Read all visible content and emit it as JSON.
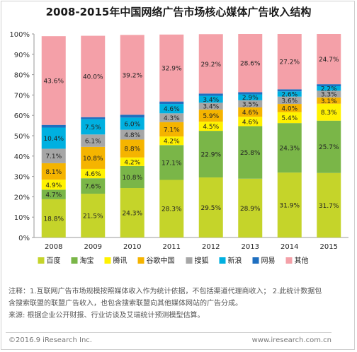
{
  "chart_data": {
    "type": "bar",
    "stacked": true,
    "percent": true,
    "title": "2008-2015年中国网络广告市场核心媒体广告收入结构",
    "categories": [
      "2008",
      "2009",
      "2010",
      "2011",
      "2012",
      "2013",
      "2014",
      "2015"
    ],
    "yticks": [
      "0%",
      "10%",
      "20%",
      "30%",
      "40%",
      "50%",
      "60%",
      "70%",
      "80%",
      "90%",
      "100%"
    ],
    "ylim": [
      0,
      100
    ],
    "grid": false,
    "legend_position": "bottom",
    "series": [
      {
        "name": "百度",
        "color": "#c5d42a",
        "values": [
          18.8,
          21.5,
          24.3,
          28.3,
          29.5,
          28.9,
          31.9,
          31.7
        ]
      },
      {
        "name": "淘宝",
        "color": "#7ab648",
        "values": [
          4.7,
          7.6,
          10.8,
          17.1,
          22.9,
          25.8,
          24.3,
          25.7
        ]
      },
      {
        "name": "腾讯",
        "color": "#fff200",
        "values": [
          4.9,
          4.6,
          4.2,
          4.2,
          4.5,
          4.6,
          5.4,
          8.3
        ]
      },
      {
        "name": "谷歌中国",
        "color": "#f5b400",
        "values": [
          8.1,
          10.8,
          8.8,
          7.1,
          5.9,
          4.6,
          4.0,
          3.1
        ]
      },
      {
        "name": "搜狐",
        "color": "#a6a6a6",
        "values": [
          7.1,
          6.1,
          4.8,
          4.3,
          3.4,
          3.5,
          3.6,
          3.3
        ]
      },
      {
        "name": "新浪",
        "color": "#00b0e0",
        "values": [
          10.4,
          7.5,
          6.0,
          4.6,
          3.4,
          2.9,
          2.6,
          2.2
        ]
      },
      {
        "name": "网易",
        "color": "#1f6fc0",
        "values": [
          1.3,
          1.0,
          1.4,
          1.2,
          1.1,
          1.1,
          1.0,
          1.0
        ]
      },
      {
        "name": "其他",
        "color": "#f4a0a8",
        "values": [
          43.6,
          40.0,
          39.2,
          32.9,
          29.2,
          28.6,
          27.2,
          24.7
        ]
      }
    ],
    "data_labels": [
      [
        "18.8%",
        "4.7%",
        "4.9%",
        "8.1%",
        "7.1%",
        "10.4%",
        "",
        "43.6%"
      ],
      [
        "21.5%",
        "7.6%",
        "4.6%",
        "10.8%",
        "6.1%",
        "7.5%",
        "",
        "40.0%"
      ],
      [
        "24.3%",
        "10.8%",
        "4.2%",
        "8.8%",
        "4.8%",
        "6.0%",
        "",
        "39.2%"
      ],
      [
        "28.3%",
        "17.1%",
        "4.2%",
        "7.1%",
        "4.3%",
        "4.6%",
        "",
        "32.9%"
      ],
      [
        "29.5%",
        "22.9%",
        "4.5%",
        "5.9%",
        "3.4%",
        "3.4%",
        "",
        "29.2%"
      ],
      [
        "28.9%",
        "25.8%",
        "4.6%",
        "4.6%",
        "3.5%",
        "2.9%",
        "",
        "28.6%"
      ],
      [
        "31.9%",
        "24.3%",
        "5.4%",
        "4.0%",
        "3.6%",
        "2.6%",
        "",
        "27.2%"
      ],
      [
        "31.7%",
        "25.7%",
        "8.3%",
        "3.1%",
        "3.3%",
        "2.2%",
        "",
        "24.7%"
      ]
    ]
  },
  "notes": {
    "line1": "注释：1.互联网广告市场规模按照媒体收入作为统计依据，不包括渠道代理商收入；  2.此统计数据包",
    "line2": "含搜索联盟的联盟广告收入，也包含搜索联盟向其他媒体网站的广告分成。",
    "line3": "来源: 根据企业公开财报、行业访谈及艾瑞统计预测模型估算。"
  },
  "footer": {
    "copyright": "©2016.9 iResearch Inc.",
    "website": "www.iresearch.com.cn"
  }
}
